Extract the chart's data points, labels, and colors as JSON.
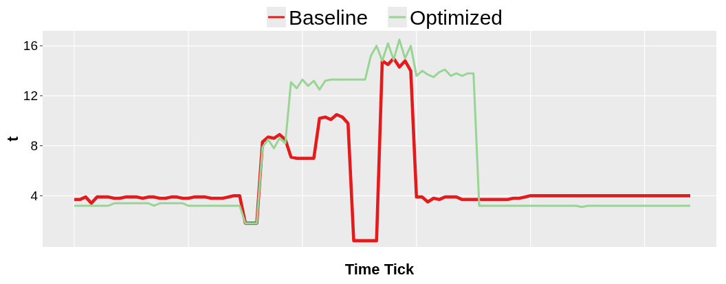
{
  "chart_data": {
    "type": "line",
    "xlabel": "Time Tick",
    "ylabel": "t",
    "categories": [
      null,
      null,
      null,
      null,
      null,
      null,
      null,
      null,
      null,
      null,
      null,
      null,
      null,
      null,
      null,
      null,
      null,
      null,
      null,
      null,
      null,
      null,
      null,
      null,
      null,
      null,
      null,
      null,
      null,
      null,
      null,
      null,
      null,
      null,
      null,
      null,
      null,
      null,
      null,
      null,
      null,
      null,
      null,
      null,
      null,
      null,
      null,
      null,
      null,
      null,
      null,
      null,
      null,
      null,
      null,
      null,
      null,
      null,
      null,
      null,
      null,
      null,
      null,
      null,
      null,
      null,
      null,
      null,
      null,
      null,
      null,
      null,
      null,
      null,
      null,
      null,
      null,
      null,
      null,
      null,
      null,
      null,
      null,
      null,
      null,
      null,
      null,
      null,
      null,
      null,
      null,
      null,
      null,
      null,
      null,
      null,
      null,
      null,
      null,
      null,
      null,
      null,
      null,
      null,
      null,
      null,
      null,
      null,
      null
    ],
    "ylim": [
      -0.1,
      17.2
    ],
    "yticks": [
      4,
      8,
      12,
      16
    ],
    "grid": true,
    "legend": "top",
    "line_style": "solid",
    "marker": "none",
    "series": [
      {
        "name": "Baseline",
        "color": "#e41a1c",
        "values": [
          3.7,
          3.7,
          3.9,
          3.4,
          3.9,
          3.9,
          3.9,
          3.8,
          3.8,
          3.9,
          3.9,
          3.9,
          3.8,
          3.9,
          3.9,
          3.8,
          3.8,
          3.9,
          3.9,
          3.8,
          3.8,
          3.9,
          3.9,
          3.9,
          3.8,
          3.8,
          3.8,
          3.9,
          4.0,
          4.0,
          1.8,
          1.8,
          1.8,
          8.3,
          8.7,
          8.6,
          8.9,
          8.5,
          7.1,
          7.0,
          7.0,
          7.0,
          7.0,
          10.2,
          10.3,
          10.1,
          10.5,
          10.3,
          9.8,
          0.4,
          0.4,
          0.4,
          0.4,
          0.4,
          14.8,
          14.5,
          15.0,
          14.3,
          14.8,
          14.0,
          3.9,
          3.9,
          3.5,
          3.8,
          3.7,
          3.9,
          3.9,
          3.9,
          3.7,
          3.7,
          3.7,
          3.7,
          3.7,
          3.7,
          3.7,
          3.7,
          3.7,
          3.8,
          3.8,
          3.9,
          4.0,
          4.0,
          4.0,
          4.0,
          4.0,
          4.0,
          4.0,
          4.0,
          4.0,
          4.0,
          4.0,
          4.0,
          4.0,
          4.0,
          4.0,
          4.0,
          4.0,
          4.0,
          4.0,
          4.0,
          4.0,
          4.0,
          4.0,
          4.0,
          4.0,
          4.0,
          4.0,
          4.0,
          4.0
        ]
      },
      {
        "name": "Optimized",
        "color": "#98d594",
        "values": [
          3.2,
          3.2,
          3.2,
          3.2,
          3.2,
          3.2,
          3.2,
          3.4,
          3.4,
          3.4,
          3.4,
          3.4,
          3.4,
          3.4,
          3.2,
          3.4,
          3.4,
          3.4,
          3.4,
          3.4,
          3.2,
          3.2,
          3.2,
          3.2,
          3.2,
          3.2,
          3.2,
          3.2,
          3.2,
          3.2,
          1.8,
          1.8,
          1.8,
          7.9,
          8.5,
          7.8,
          8.6,
          8.2,
          13.1,
          12.6,
          13.3,
          12.8,
          13.2,
          12.5,
          13.2,
          13.3,
          13.3,
          13.3,
          13.3,
          13.3,
          13.3,
          13.3,
          15.2,
          16.0,
          14.8,
          16.2,
          14.9,
          16.5,
          15.0,
          16.0,
          13.6,
          14.0,
          13.7,
          13.5,
          13.9,
          14.1,
          13.6,
          13.8,
          13.6,
          13.8,
          13.8,
          3.2,
          3.2,
          3.2,
          3.2,
          3.2,
          3.2,
          3.2,
          3.2,
          3.2,
          3.2,
          3.2,
          3.2,
          3.2,
          3.2,
          3.2,
          3.2,
          3.2,
          3.2,
          3.1,
          3.2,
          3.2,
          3.2,
          3.2,
          3.2,
          3.2,
          3.2,
          3.2,
          3.2,
          3.2,
          3.2,
          3.2,
          3.2,
          3.2,
          3.2,
          3.2,
          3.2,
          3.2,
          3.2
        ]
      }
    ]
  }
}
